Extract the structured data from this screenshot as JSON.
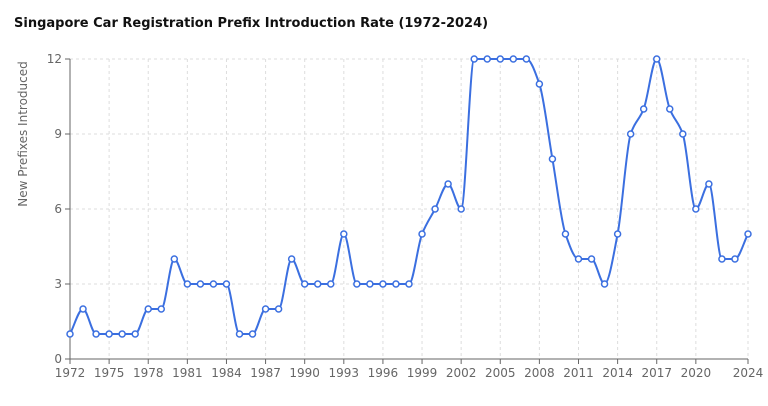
{
  "chart_data": {
    "type": "line",
    "title": "Singapore Car Registration Prefix Introduction Rate (1972-2024)",
    "y_label": "New Prefixes Introduced",
    "x": [
      1972,
      1973,
      1974,
      1975,
      1976,
      1977,
      1978,
      1979,
      1980,
      1981,
      1982,
      1983,
      1984,
      1985,
      1986,
      1987,
      1988,
      1989,
      1990,
      1991,
      1992,
      1993,
      1994,
      1995,
      1996,
      1997,
      1998,
      1999,
      2000,
      2001,
      2002,
      2003,
      2004,
      2005,
      2006,
      2007,
      2008,
      2009,
      2010,
      2011,
      2012,
      2013,
      2014,
      2015,
      2016,
      2017,
      2018,
      2019,
      2020,
      2021,
      2022,
      2023,
      2024
    ],
    "series": [
      {
        "name": "New Prefixes Introduced",
        "color": "#3b6fe0",
        "values": [
          1,
          2,
          1,
          1,
          1,
          1,
          2,
          2,
          4,
          3,
          3,
          3,
          3,
          1,
          1,
          2,
          2,
          4,
          3,
          3,
          3,
          5,
          3,
          3,
          3,
          3,
          3,
          5,
          6,
          7,
          6,
          12,
          12,
          12,
          12,
          12,
          11,
          8,
          5,
          4,
          4,
          3,
          5,
          9,
          10,
          12,
          10,
          9,
          6,
          7,
          4,
          4,
          5
        ]
      }
    ],
    "xlim": [
      1972,
      2024
    ],
    "xticks": [
      1972,
      1975,
      1978,
      1981,
      1984,
      1987,
      1990,
      1993,
      1996,
      1999,
      2002,
      2005,
      2008,
      2011,
      2014,
      2017,
      2020,
      2024
    ],
    "ylim": [
      0,
      12
    ],
    "yticks": [
      0,
      3,
      6,
      9,
      12
    ],
    "grid": true
  }
}
